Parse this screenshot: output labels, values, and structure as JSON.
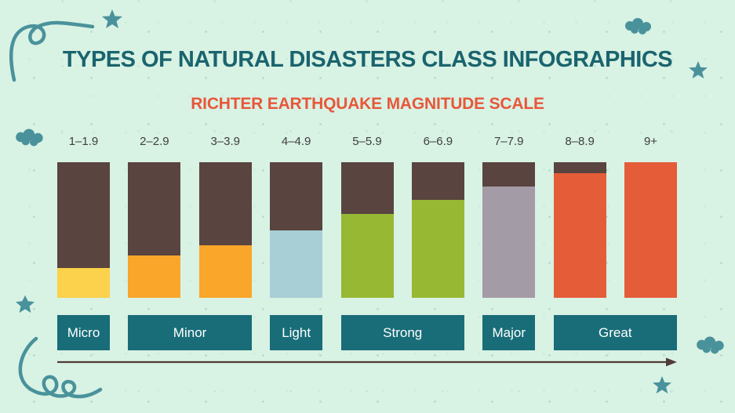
{
  "page": {
    "title": "TYPES OF NATURAL DISASTERS CLASS INFOGRAPHICS",
    "subtitle": "RICHTER EARTHQUAKE MAGNITUDE SCALE"
  },
  "colors": {
    "background": "#d8f2e4",
    "title": "#1a646e",
    "subtitle": "#e8573a",
    "bar_top": "#594440",
    "class_box": "#186d78",
    "class_text": "#ffffff",
    "tick_label": "#3f3f3f",
    "arrow": "#4f3c36",
    "doodle": "#4a929b"
  },
  "chart_data": {
    "type": "bar",
    "title": "Richter Earthquake Magnitude Scale",
    "categories": [
      "1–1.9",
      "2–2.9",
      "3–3.9",
      "4–4.9",
      "5–5.9",
      "6–6.9",
      "7–7.9",
      "8–8.9",
      "9+"
    ],
    "values": [
      22,
      31,
      39,
      50,
      62,
      72,
      82,
      92,
      100
    ],
    "ylim": [
      0,
      100
    ],
    "bar_colors": [
      "#fcd14c",
      "#f9a62b",
      "#f9a62b",
      "#a8cfd6",
      "#97b832",
      "#97b832",
      "#a39ba5",
      "#e55c39",
      "#e55c39"
    ],
    "track_color": "#594440",
    "legend_position": "none",
    "grid": false,
    "classes": [
      {
        "label": "Micro",
        "start": 0,
        "span": 1
      },
      {
        "label": "Minor",
        "start": 1,
        "span": 2
      },
      {
        "label": "Light",
        "start": 3,
        "span": 1
      },
      {
        "label": "Strong",
        "start": 4,
        "span": 2
      },
      {
        "label": "Major",
        "start": 6,
        "span": 1
      },
      {
        "label": "Great",
        "start": 7,
        "span": 2
      }
    ]
  },
  "decorations": [
    "swirl-doodle-icon",
    "star-icon",
    "cloud-icon"
  ]
}
